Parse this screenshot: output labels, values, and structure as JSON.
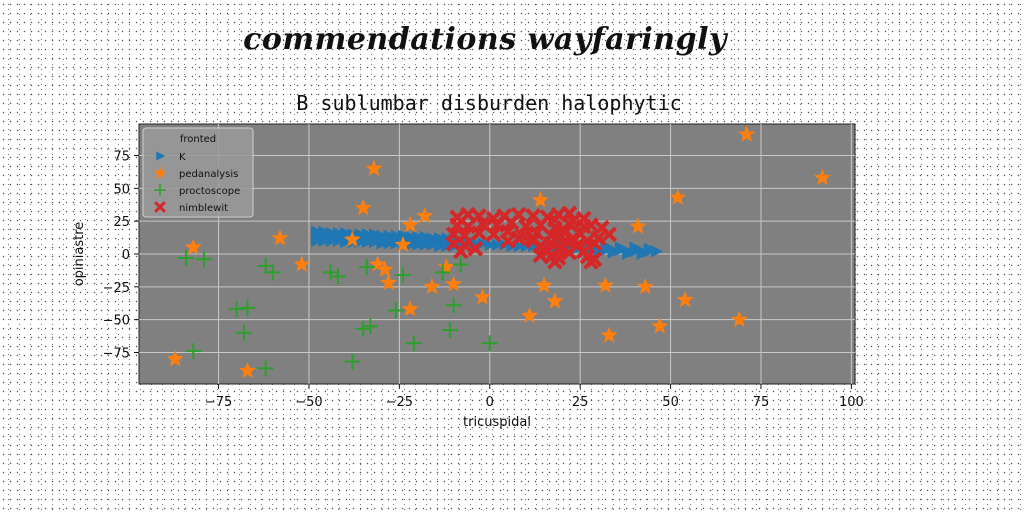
{
  "page_title": "commendations wayfaringly",
  "chart_data": {
    "type": "scatter",
    "title": "B sublumbar disburden halophytic",
    "xlabel": "tricuspidal",
    "ylabel": "opiniastre",
    "xlim": [
      -97,
      101
    ],
    "ylim": [
      -99,
      99
    ],
    "x_ticks": [
      -75,
      -50,
      -25,
      0,
      25,
      50,
      75,
      100
    ],
    "y_ticks": [
      -75,
      -50,
      -25,
      0,
      25,
      50,
      75
    ],
    "x_tick_labels": [
      "−75",
      "−50",
      "−25",
      "0",
      "25",
      "50",
      "75",
      "100"
    ],
    "y_tick_labels": [
      "−75",
      "−50",
      "−25",
      "0",
      "25",
      "50",
      "75"
    ],
    "grid": true,
    "plot_background": "#808080",
    "legend": {
      "title": "fronted",
      "placement": "upper-left"
    },
    "series": [
      {
        "name": "K",
        "marker": "triangle-right",
        "color": "#1f77b4",
        "points": [
          [
            -48,
            14
          ],
          [
            -46,
            14
          ],
          [
            -44,
            14
          ],
          [
            -42,
            13
          ],
          [
            -40,
            14
          ],
          [
            -38,
            13
          ],
          [
            -36,
            13
          ],
          [
            -34,
            13
          ],
          [
            -32,
            12
          ],
          [
            -30,
            12
          ],
          [
            -28,
            12
          ],
          [
            -26,
            12
          ],
          [
            -24,
            11
          ],
          [
            -22,
            11
          ],
          [
            -20,
            11
          ],
          [
            -18,
            10
          ],
          [
            -16,
            10
          ],
          [
            -14,
            10
          ],
          [
            -12,
            9
          ],
          [
            -10,
            9
          ],
          [
            -8,
            9
          ],
          [
            -6,
            8
          ],
          [
            -4,
            8
          ],
          [
            -2,
            8
          ],
          [
            0,
            7
          ],
          [
            2,
            7
          ],
          [
            4,
            7
          ],
          [
            6,
            6
          ],
          [
            8,
            6
          ],
          [
            10,
            6
          ],
          [
            12,
            6
          ],
          [
            14,
            5
          ],
          [
            16,
            5
          ],
          [
            18,
            5
          ],
          [
            20,
            5
          ],
          [
            22,
            4
          ],
          [
            24,
            4
          ],
          [
            26,
            4
          ],
          [
            28,
            4
          ],
          [
            30,
            3
          ],
          [
            32,
            3
          ],
          [
            34,
            3
          ],
          [
            36,
            3
          ],
          [
            38,
            2
          ],
          [
            40,
            2
          ],
          [
            42,
            2
          ],
          [
            44,
            2
          ],
          [
            46,
            2
          ],
          [
            -48,
            17
          ],
          [
            -46,
            17
          ],
          [
            -44,
            16
          ],
          [
            -42,
            16
          ],
          [
            -40,
            16
          ],
          [
            -38,
            15
          ],
          [
            -36,
            15
          ],
          [
            -34,
            15
          ],
          [
            -32,
            15
          ],
          [
            -30,
            14
          ],
          [
            -28,
            14
          ],
          [
            -26,
            14
          ],
          [
            -24,
            14
          ],
          [
            -22,
            13
          ],
          [
            -20,
            13
          ],
          [
            -18,
            13
          ],
          [
            -16,
            12
          ],
          [
            -14,
            12
          ],
          [
            -12,
            12
          ],
          [
            -10,
            11
          ],
          [
            -48,
            10
          ],
          [
            -46,
            10
          ],
          [
            -44,
            10
          ],
          [
            -42,
            10
          ],
          [
            -40,
            9
          ],
          [
            -38,
            9
          ],
          [
            -36,
            9
          ],
          [
            -34,
            9
          ],
          [
            -32,
            9
          ],
          [
            -30,
            8
          ],
          [
            -28,
            8
          ],
          [
            -26,
            8
          ],
          [
            -24,
            8
          ],
          [
            -22,
            7
          ],
          [
            -20,
            7
          ],
          [
            -18,
            7
          ],
          [
            -16,
            7
          ],
          [
            -14,
            6
          ],
          [
            -12,
            6
          ],
          [
            -10,
            6
          ],
          [
            20,
            7
          ],
          [
            24,
            7
          ],
          [
            28,
            6
          ],
          [
            32,
            6
          ],
          [
            36,
            5
          ],
          [
            40,
            5
          ],
          [
            44,
            4
          ],
          [
            34,
            1
          ],
          [
            38,
            0
          ],
          [
            42,
            0
          ]
        ]
      },
      {
        "name": "pedanalysis",
        "marker": "star",
        "color": "#ff7f0e",
        "points": [
          [
            71,
            91
          ],
          [
            -32,
            65
          ],
          [
            92,
            58
          ],
          [
            52,
            43
          ],
          [
            14,
            41
          ],
          [
            -35,
            35
          ],
          [
            -18,
            29
          ],
          [
            -22,
            22
          ],
          [
            41,
            21
          ],
          [
            -58,
            12
          ],
          [
            -38,
            11
          ],
          [
            -24,
            7
          ],
          [
            -82,
            5
          ],
          [
            -52,
            -8
          ],
          [
            -31,
            -8
          ],
          [
            -29,
            -12
          ],
          [
            -12,
            -10
          ],
          [
            -28,
            -22
          ],
          [
            -10,
            -23
          ],
          [
            15,
            -24
          ],
          [
            -16,
            -25
          ],
          [
            32,
            -24
          ],
          [
            43,
            -25
          ],
          [
            -2,
            -33
          ],
          [
            18,
            -36
          ],
          [
            54,
            -35
          ],
          [
            -22,
            -42
          ],
          [
            11,
            -47
          ],
          [
            69,
            -50
          ],
          [
            47,
            -55
          ],
          [
            33,
            -62
          ],
          [
            -87,
            -80
          ],
          [
            -67,
            -89
          ]
        ]
      },
      {
        "name": "proctoscope",
        "marker": "plus",
        "color": "#2ca02c",
        "points": [
          [
            -84,
            -3
          ],
          [
            -79,
            -4
          ],
          [
            -62,
            -9
          ],
          [
            -60,
            -14
          ],
          [
            -44,
            -14
          ],
          [
            -42,
            -17
          ],
          [
            -34,
            -10
          ],
          [
            -24,
            -16
          ],
          [
            -13,
            -14
          ],
          [
            -8,
            -8
          ],
          [
            -26,
            -43
          ],
          [
            -10,
            -39
          ],
          [
            -70,
            -42
          ],
          [
            -67,
            -41
          ],
          [
            -68,
            -60
          ],
          [
            -33,
            -55
          ],
          [
            -35,
            -57
          ],
          [
            -11,
            -58
          ],
          [
            -21,
            -68
          ],
          [
            0,
            -68
          ],
          [
            -82,
            -74
          ],
          [
            -38,
            -82
          ],
          [
            -62,
            -87
          ]
        ]
      },
      {
        "name": "nimblewit",
        "marker": "x",
        "color": "#d62728",
        "points": [
          [
            -9,
            28
          ],
          [
            -6,
            30
          ],
          [
            -3,
            29
          ],
          [
            1,
            27
          ],
          [
            4,
            29
          ],
          [
            8,
            30
          ],
          [
            12,
            29
          ],
          [
            16,
            28
          ],
          [
            19,
            30
          ],
          [
            22,
            31
          ],
          [
            -9,
            22
          ],
          [
            -6,
            21
          ],
          [
            -2,
            23
          ],
          [
            2,
            22
          ],
          [
            6,
            24
          ],
          [
            10,
            21
          ],
          [
            14,
            22
          ],
          [
            18,
            20
          ],
          [
            22,
            23
          ],
          [
            26,
            21
          ],
          [
            -10,
            15
          ],
          [
            -7,
            14
          ],
          [
            -3,
            16
          ],
          [
            1,
            15
          ],
          [
            5,
            17
          ],
          [
            9,
            14
          ],
          [
            13,
            16
          ],
          [
            17,
            14
          ],
          [
            21,
            17
          ],
          [
            25,
            15
          ],
          [
            28,
            22
          ],
          [
            31,
            20
          ],
          [
            33,
            15
          ],
          [
            30,
            12
          ],
          [
            27,
            10
          ],
          [
            29,
            8
          ],
          [
            -10,
            8
          ],
          [
            -7,
            7
          ],
          [
            -8,
            2
          ],
          [
            -4,
            4
          ],
          [
            12,
            10
          ],
          [
            14,
            6
          ],
          [
            16,
            2
          ],
          [
            17,
            -2
          ],
          [
            18,
            -6
          ],
          [
            19,
            -3
          ],
          [
            14,
            -1
          ],
          [
            15,
            4
          ],
          [
            20,
            4
          ],
          [
            22,
            1
          ],
          [
            26,
            2
          ],
          [
            27,
            -2
          ],
          [
            28,
            -6
          ],
          [
            29,
            -4
          ],
          [
            17,
            8
          ],
          [
            21,
            10
          ],
          [
            23,
            12
          ],
          [
            19,
            12
          ],
          [
            24,
            6
          ],
          [
            12,
            12
          ],
          [
            20,
            18
          ],
          [
            18,
            26
          ],
          [
            23,
            25
          ],
          [
            26,
            27
          ],
          [
            5,
            10
          ],
          [
            8,
            12
          ]
        ]
      }
    ]
  }
}
